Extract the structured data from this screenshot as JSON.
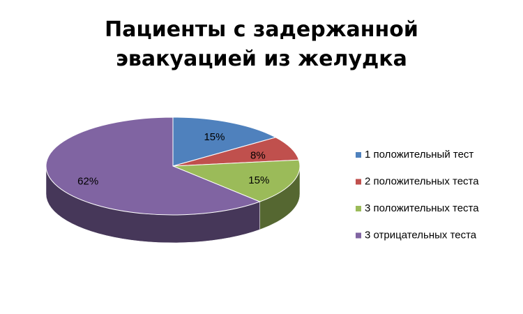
{
  "chart_data": {
    "type": "pie",
    "title": "Пациенты с задержанной эвакуацией из желудка",
    "categories": [
      "1 положительный тест",
      "2 положительных теста",
      "3 положительных теста",
      "3 отрицательных теста"
    ],
    "values": [
      15,
      8,
      15,
      62
    ],
    "value_labels": [
      "15%",
      "8%",
      "15%",
      "62%"
    ],
    "colors": [
      "#4f81bd",
      "#c0504d",
      "#9bbb59",
      "#8064a2"
    ],
    "legend": "right"
  }
}
